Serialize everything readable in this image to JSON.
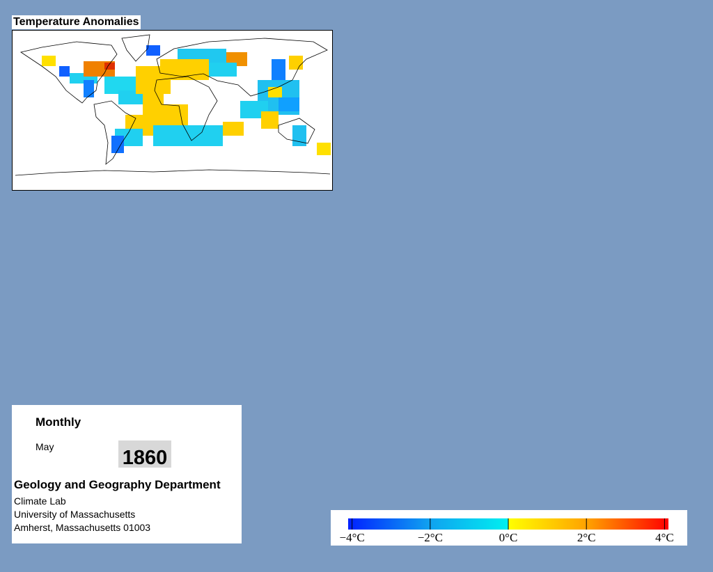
{
  "title": "Temperature Anomalies",
  "info": {
    "period": "Monthly",
    "month": "May",
    "year": "1860",
    "department": "Geology and Geography Department",
    "address": [
      "Climate Lab",
      "University of Massachusetts",
      "Amherst, Massachusetts 01003"
    ]
  },
  "colorbar": {
    "lim": [
      -4.1,
      4.1
    ],
    "ticks": [
      {
        "value": -4,
        "label": "−4°C"
      },
      {
        "value": -2,
        "label": "−2°C"
      },
      {
        "value": 0,
        "label": "0°C"
      },
      {
        "value": 2,
        "label": "2°C"
      },
      {
        "value": 4,
        "label": "4°C"
      }
    ]
  }
}
